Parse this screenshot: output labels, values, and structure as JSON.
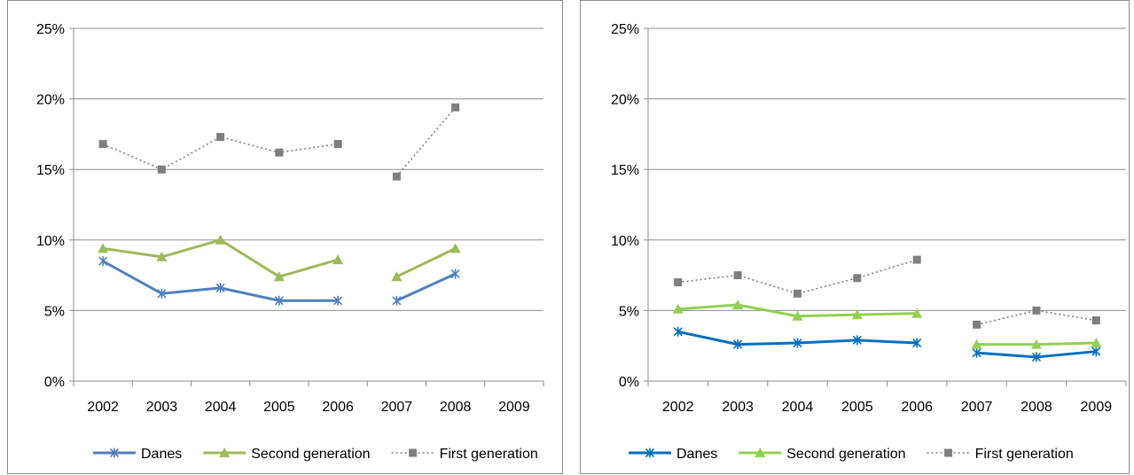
{
  "chart_data": [
    {
      "type": "line",
      "categories": [
        "2002",
        "2003",
        "2004",
        "2005",
        "2006",
        "2007",
        "2008",
        "2009"
      ],
      "ylim": [
        0,
        25
      ],
      "yticks": [
        "0%",
        "5%",
        "10%",
        "15%",
        "20%",
        "25%"
      ],
      "grid": true,
      "legend_position": "bottom",
      "series": [
        {
          "name": "Danes",
          "values": [
            8.5,
            6.2,
            6.6,
            5.7,
            5.7,
            5.7,
            7.6,
            null
          ],
          "color": "#4f81bd",
          "marker": "star",
          "dash": "solid"
        },
        {
          "name": "Second generation",
          "values": [
            9.4,
            8.8,
            10.0,
            7.4,
            8.6,
            7.4,
            9.4,
            null
          ],
          "color": "#9bbb59",
          "marker": "triangle",
          "dash": "solid"
        },
        {
          "name": "First generation",
          "values": [
            16.8,
            15.0,
            17.3,
            16.2,
            16.8,
            14.5,
            19.4,
            null
          ],
          "color": "#7f7f7f",
          "marker": "square",
          "dash": "dotted"
        }
      ],
      "gap_after": "2006"
    },
    {
      "type": "line",
      "categories": [
        "2002",
        "2003",
        "2004",
        "2005",
        "2006",
        "2007",
        "2008",
        "2009"
      ],
      "ylim": [
        0,
        25
      ],
      "yticks": [
        "0%",
        "5%",
        "10%",
        "15%",
        "20%",
        "25%"
      ],
      "grid": true,
      "legend_position": "bottom",
      "series": [
        {
          "name": "Danes",
          "values": [
            3.5,
            2.6,
            2.7,
            2.9,
            2.7,
            2.0,
            1.7,
            2.1
          ],
          "color": "#0070c0",
          "marker": "star",
          "dash": "solid"
        },
        {
          "name": "Second generation",
          "values": [
            5.1,
            5.4,
            4.6,
            4.7,
            4.8,
            2.6,
            2.6,
            2.7
          ],
          "color": "#92d050",
          "marker": "triangle",
          "dash": "solid"
        },
        {
          "name": "First generation",
          "values": [
            7.0,
            7.5,
            6.2,
            7.3,
            8.6,
            4.0,
            5.0,
            4.3
          ],
          "color": "#7f7f7f",
          "marker": "square",
          "dash": "dotted"
        }
      ],
      "gap_after": "2006"
    }
  ]
}
